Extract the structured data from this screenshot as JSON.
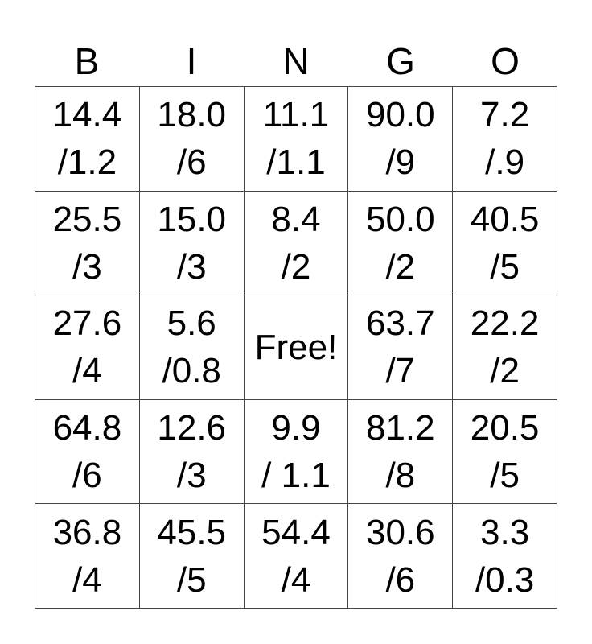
{
  "header": [
    "B",
    "I",
    "N",
    "G",
    "O"
  ],
  "cells": [
    [
      "14.4\n/1.2",
      "18.0\n/6",
      "11.1\n/1.1",
      "90.0\n/9",
      "7.2\n/.9"
    ],
    [
      "25.5\n/3",
      "15.0\n/3",
      "8.4\n/2",
      "50.0\n/2",
      "40.5\n/5"
    ],
    [
      "27.6\n/4",
      "5.6\n/0.8",
      "Free!",
      "63.7\n/7",
      "22.2\n/2"
    ],
    [
      "64.8\n/6",
      "12.6\n/3",
      "9.9\n/ 1.1",
      "81.2\n/8",
      "20.5\n/5"
    ],
    [
      "36.8\n/4",
      "45.5\n/5",
      "54.4\n/4",
      "30.6\n/6",
      "3.3\n/0.3"
    ]
  ]
}
